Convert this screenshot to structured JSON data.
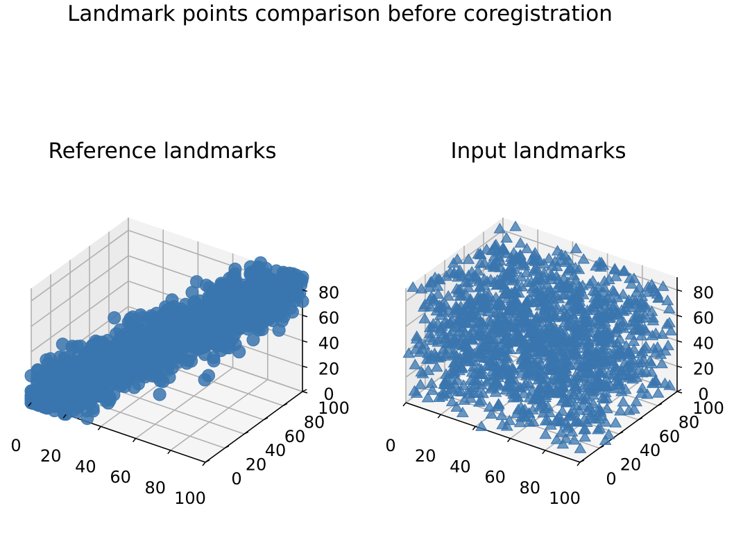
{
  "figure": {
    "suptitle": "Landmark points comparison before coregistration"
  },
  "chart_data": [
    {
      "type": "scatter3d",
      "title": "Reference landmarks",
      "marker": "circle",
      "color": "#3a75ae",
      "xlabel": "",
      "ylabel": "",
      "zlabel": "",
      "xlim": [
        0,
        100
      ],
      "ylim": [
        0,
        100
      ],
      "zlim": [
        0,
        90
      ],
      "xticks": [
        "0",
        "20",
        "40",
        "60",
        "80",
        "100"
      ],
      "yticks": [
        "0",
        "20",
        "40",
        "60",
        "80",
        "100"
      ],
      "zticks": [
        "0",
        "20",
        "40",
        "60",
        "80"
      ],
      "grid": true,
      "distribution": "dense cloud along the diagonal x≈y≈z, spread roughly ±15"
    },
    {
      "type": "scatter3d",
      "title": "Input landmarks",
      "marker": "triangle",
      "color": "#3a75ae",
      "xlabel": "",
      "ylabel": "",
      "zlabel": "",
      "xlim": [
        0,
        100
      ],
      "ylim": [
        0,
        100
      ],
      "zlim": [
        0,
        90
      ],
      "xticks": [
        "0",
        "20",
        "40",
        "60",
        "80",
        "100"
      ],
      "yticks": [
        "0",
        "20",
        "40",
        "60",
        "80",
        "100"
      ],
      "zticks": [
        "0",
        "20",
        "40",
        "60",
        "80"
      ],
      "grid": true,
      "distribution": "dense cloud filling nearly the full 0–100 cube"
    }
  ]
}
